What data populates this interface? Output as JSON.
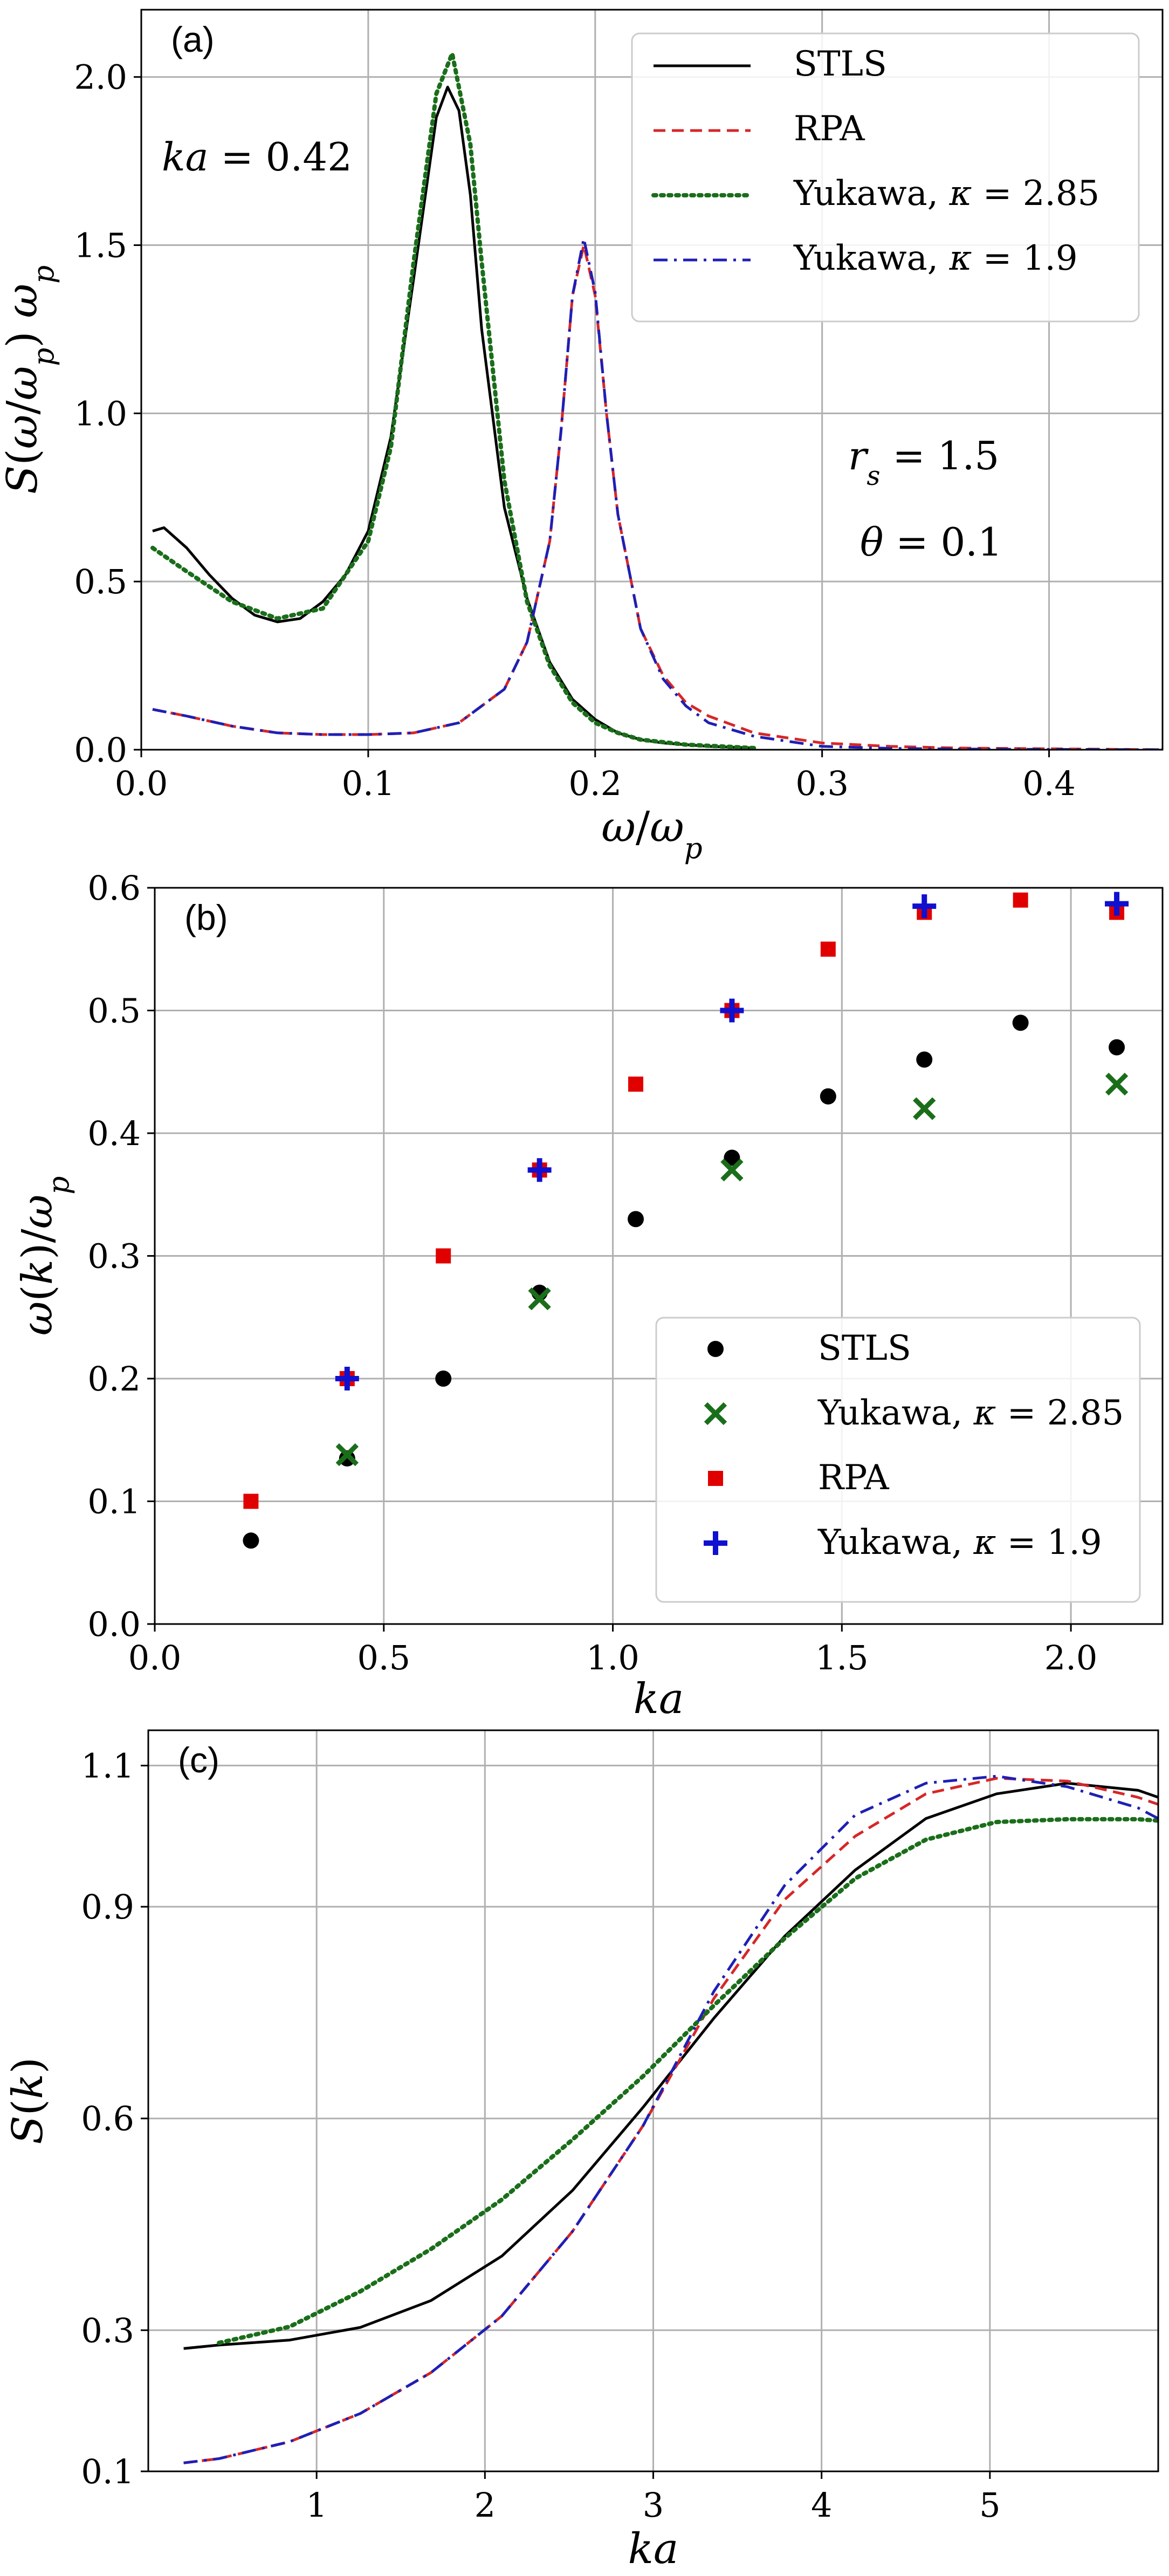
{
  "chart_data": [
    {
      "id": "a",
      "type": "line",
      "panel_label": "(a)",
      "xlabel": "ω/ω_p",
      "ylabel": "S(ω/ω_p) ω_p",
      "xlim": [
        0.0,
        0.45
      ],
      "ylim": [
        0.0,
        2.2
      ],
      "xticks": [
        0.0,
        0.1,
        0.2,
        0.3,
        0.4
      ],
      "xtick_labels": [
        "0.0",
        "0.1",
        "0.2",
        "0.3",
        "0.4"
      ],
      "yticks": [
        0.0,
        0.5,
        1.0,
        1.5,
        2.0
      ],
      "ytick_labels": [
        "0.0",
        "0.5",
        "1.0",
        "1.5",
        "2.0"
      ],
      "grid": true,
      "legend_position": "top-right",
      "annotations": [
        "ka = 0.42",
        "r_s = 1.5",
        "θ = 0.1"
      ],
      "series": [
        {
          "name": "STLS",
          "color": "#000000",
          "style": "solid",
          "x": [
            0.005,
            0.01,
            0.02,
            0.03,
            0.04,
            0.05,
            0.06,
            0.07,
            0.08,
            0.09,
            0.1,
            0.11,
            0.12,
            0.13,
            0.135,
            0.14,
            0.145,
            0.15,
            0.16,
            0.17,
            0.18,
            0.19,
            0.2,
            0.21,
            0.22,
            0.23,
            0.25,
            0.27
          ],
          "y": [
            0.65,
            0.66,
            0.6,
            0.52,
            0.45,
            0.4,
            0.38,
            0.39,
            0.44,
            0.52,
            0.65,
            0.93,
            1.4,
            1.88,
            1.97,
            1.9,
            1.65,
            1.25,
            0.72,
            0.45,
            0.26,
            0.15,
            0.09,
            0.05,
            0.03,
            0.02,
            0.01,
            0.005
          ]
        },
        {
          "name": "RPA",
          "color": "#d62728",
          "style": "dashed",
          "x": [
            0.005,
            0.02,
            0.04,
            0.06,
            0.08,
            0.1,
            0.12,
            0.14,
            0.16,
            0.17,
            0.18,
            0.185,
            0.19,
            0.195,
            0.2,
            0.205,
            0.21,
            0.22,
            0.23,
            0.24,
            0.25,
            0.27,
            0.3,
            0.33,
            0.36,
            0.45
          ],
          "y": [
            0.12,
            0.1,
            0.07,
            0.05,
            0.045,
            0.045,
            0.05,
            0.08,
            0.18,
            0.32,
            0.62,
            0.95,
            1.35,
            1.5,
            1.35,
            1.0,
            0.7,
            0.36,
            0.22,
            0.14,
            0.1,
            0.05,
            0.02,
            0.01,
            0.005,
            0.0
          ]
        },
        {
          "name": "Yukawa, κ = 2.85",
          "color": "#1a6e1a",
          "style": "dotted",
          "x": [
            0.005,
            0.02,
            0.04,
            0.06,
            0.08,
            0.1,
            0.11,
            0.12,
            0.13,
            0.137,
            0.145,
            0.15,
            0.16,
            0.17,
            0.18,
            0.19,
            0.2,
            0.21,
            0.22,
            0.24,
            0.27
          ],
          "y": [
            0.6,
            0.53,
            0.44,
            0.39,
            0.42,
            0.62,
            0.9,
            1.45,
            1.95,
            2.07,
            1.8,
            1.45,
            0.8,
            0.44,
            0.25,
            0.14,
            0.08,
            0.05,
            0.03,
            0.015,
            0.005
          ]
        },
        {
          "name": "Yukawa, κ = 1.9",
          "color": "#1f1fb4",
          "style": "dashdot",
          "x": [
            0.005,
            0.02,
            0.04,
            0.06,
            0.08,
            0.1,
            0.12,
            0.14,
            0.16,
            0.17,
            0.18,
            0.185,
            0.19,
            0.195,
            0.2,
            0.205,
            0.21,
            0.22,
            0.23,
            0.24,
            0.25,
            0.27,
            0.3,
            0.33,
            0.36,
            0.45
          ],
          "y": [
            0.12,
            0.1,
            0.07,
            0.05,
            0.045,
            0.045,
            0.05,
            0.08,
            0.18,
            0.32,
            0.62,
            0.95,
            1.35,
            1.52,
            1.36,
            1.0,
            0.7,
            0.36,
            0.21,
            0.13,
            0.08,
            0.04,
            0.01,
            0.004,
            0.002,
            0.0
          ]
        }
      ]
    },
    {
      "id": "b",
      "type": "scatter",
      "panel_label": "(b)",
      "xlabel": "ka",
      "ylabel": "ω(k)/ω_p",
      "xlim": [
        0.0,
        2.2
      ],
      "ylim": [
        0.0,
        0.6
      ],
      "xticks": [
        0.0,
        0.5,
        1.0,
        1.5,
        2.0
      ],
      "xtick_labels": [
        "0.0",
        "0.5",
        "1.0",
        "1.5",
        "2.0"
      ],
      "yticks": [
        0.0,
        0.1,
        0.2,
        0.3,
        0.4,
        0.5,
        0.6
      ],
      "ytick_labels": [
        "0.0",
        "0.1",
        "0.2",
        "0.3",
        "0.4",
        "0.5",
        "0.6"
      ],
      "grid": true,
      "legend_position": "bottom-right",
      "series": [
        {
          "name": "STLS",
          "color": "#000000",
          "marker": "circle",
          "x": [
            0.21,
            0.42,
            0.63,
            0.84,
            1.05,
            1.26,
            1.47,
            1.68,
            1.89,
            2.1
          ],
          "y": [
            0.068,
            0.135,
            0.2,
            0.27,
            0.33,
            0.38,
            0.43,
            0.46,
            0.49,
            0.47
          ]
        },
        {
          "name": "Yukawa, κ = 2.85",
          "color": "#1a6e1a",
          "marker": "x",
          "x": [
            0.42,
            0.84,
            1.26,
            1.68,
            2.1
          ],
          "y": [
            0.138,
            0.265,
            0.37,
            0.42,
            0.44
          ]
        },
        {
          "name": "RPA",
          "color": "#e00000",
          "marker": "square",
          "x": [
            0.21,
            0.42,
            0.63,
            0.84,
            1.05,
            1.26,
            1.47,
            1.68,
            1.89,
            2.1
          ],
          "y": [
            0.1,
            0.2,
            0.3,
            0.37,
            0.44,
            0.5,
            0.55,
            0.58,
            0.59,
            0.58
          ]
        },
        {
          "name": "Yukawa, κ = 1.9",
          "color": "#1010d0",
          "marker": "plus",
          "x": [
            0.42,
            0.84,
            1.26,
            1.68,
            2.1
          ],
          "y": [
            0.2,
            0.37,
            0.5,
            0.585,
            0.587
          ]
        }
      ]
    },
    {
      "id": "c",
      "type": "line",
      "panel_label": "(c)",
      "xlabel": "ka",
      "ylabel": "S(k)",
      "xlim": [
        0.0,
        6.0
      ],
      "ylim": [
        0.1,
        1.15
      ],
      "xticks": [
        1,
        2,
        3,
        4,
        5
      ],
      "xtick_labels": [
        "1",
        "2",
        "3",
        "4",
        "5"
      ],
      "yticks": [
        0.1,
        0.3,
        0.6,
        0.9,
        1.1
      ],
      "ytick_labels": [
        "0.1",
        "0.3",
        "0.6",
        "0.9",
        "1.1"
      ],
      "grid": true,
      "series": [
        {
          "name": "STLS",
          "color": "#000000",
          "style": "solid",
          "x": [
            0.21,
            0.42,
            0.84,
            1.26,
            1.68,
            2.1,
            2.52,
            2.94,
            3.36,
            3.78,
            4.2,
            4.62,
            5.04,
            5.46,
            5.88,
            6.0
          ],
          "y": [
            0.274,
            0.279,
            0.286,
            0.304,
            0.342,
            0.405,
            0.498,
            0.616,
            0.742,
            0.858,
            0.952,
            1.025,
            1.06,
            1.075,
            1.065,
            1.055
          ]
        },
        {
          "name": "RPA",
          "color": "#d62728",
          "style": "dashed",
          "x": [
            0.21,
            0.42,
            0.84,
            1.26,
            1.68,
            2.1,
            2.52,
            2.94,
            3.36,
            3.78,
            4.2,
            4.62,
            5.04,
            5.46,
            5.88,
            6.0
          ],
          "y": [
            0.112,
            0.118,
            0.142,
            0.182,
            0.24,
            0.32,
            0.44,
            0.59,
            0.77,
            0.91,
            1.0,
            1.06,
            1.082,
            1.078,
            1.055,
            1.045
          ]
        },
        {
          "name": "Yukawa, κ = 2.85",
          "color": "#1a6e1a",
          "style": "dotted",
          "x": [
            0.42,
            0.84,
            1.26,
            1.68,
            2.1,
            2.52,
            2.94,
            3.36,
            3.78,
            4.2,
            4.62,
            5.04,
            5.46,
            5.88,
            6.0
          ],
          "y": [
            0.282,
            0.305,
            0.355,
            0.415,
            0.485,
            0.57,
            0.66,
            0.76,
            0.855,
            0.94,
            0.995,
            1.02,
            1.024,
            1.024,
            1.022
          ]
        },
        {
          "name": "Yukawa, κ = 1.9",
          "color": "#1f1fb4",
          "style": "dashdot",
          "x": [
            0.21,
            0.42,
            0.84,
            1.26,
            1.68,
            2.1,
            2.52,
            2.94,
            3.36,
            3.78,
            4.2,
            4.62,
            5.04,
            5.46,
            5.88,
            6.0
          ],
          "y": [
            0.112,
            0.118,
            0.142,
            0.182,
            0.24,
            0.32,
            0.44,
            0.59,
            0.78,
            0.93,
            1.03,
            1.075,
            1.085,
            1.07,
            1.04,
            1.025
          ]
        }
      ]
    }
  ]
}
